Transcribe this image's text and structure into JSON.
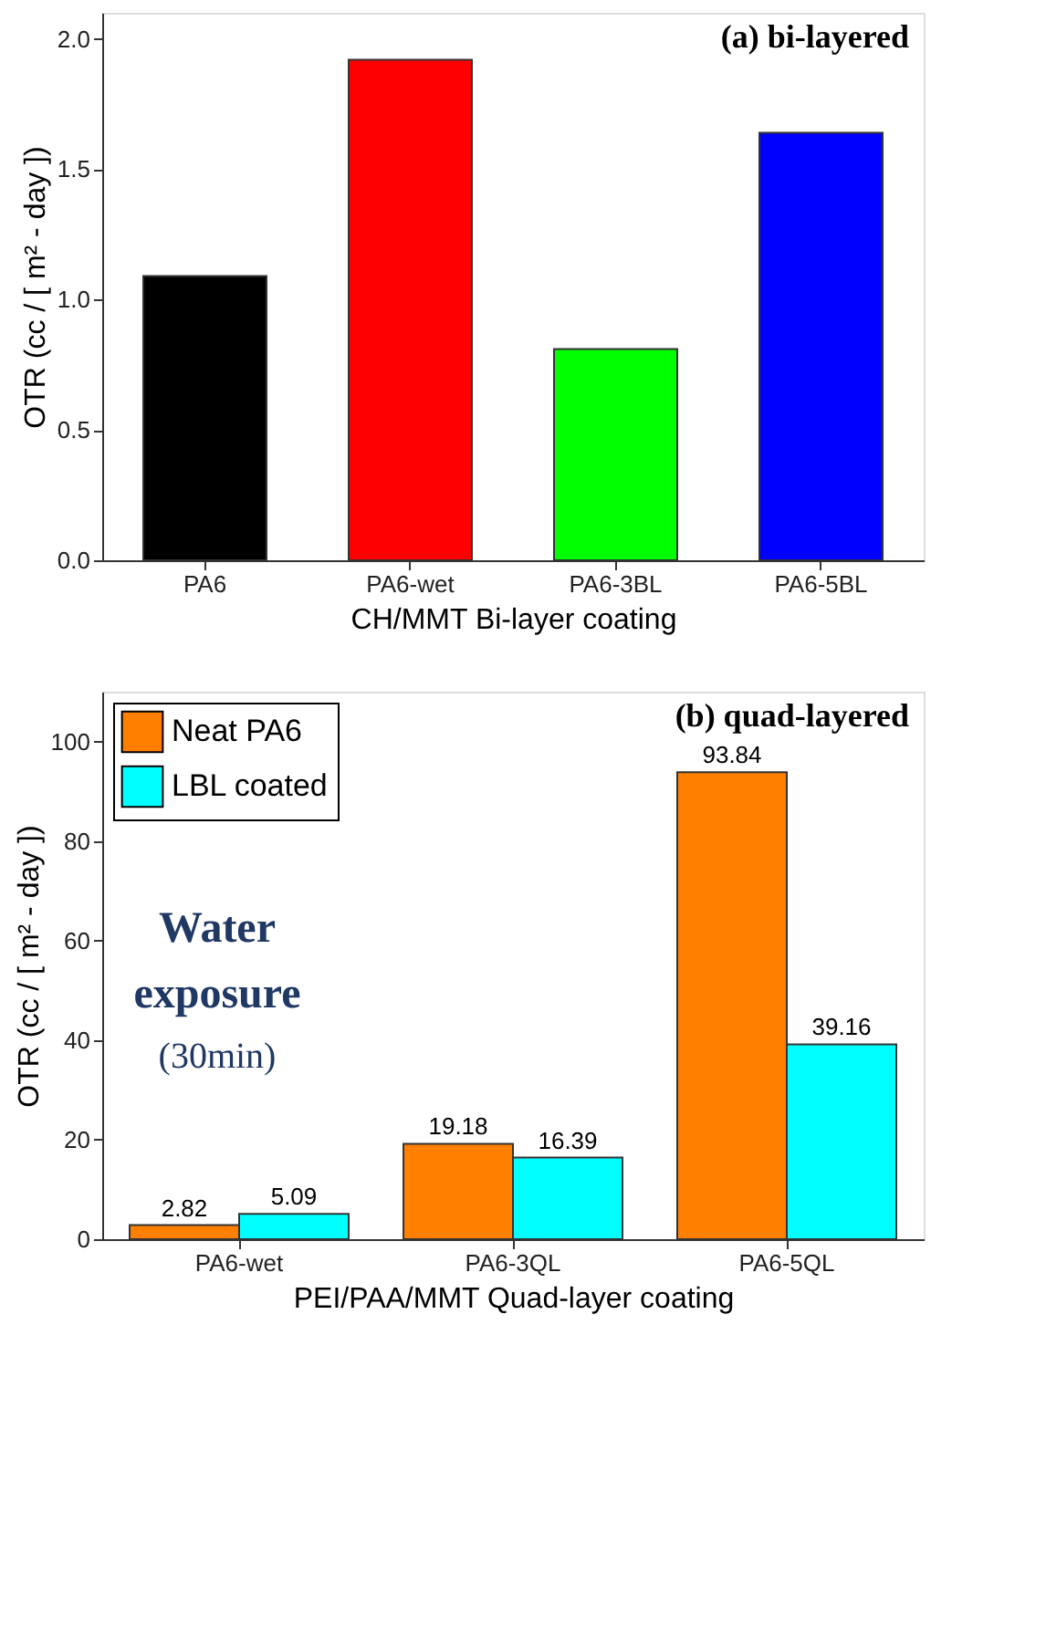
{
  "chart_data": [
    {
      "type": "bar",
      "ylabel": "OTR (cc / [ m² - day ])",
      "xlabel": "CH/MMT Bi-layer coating",
      "categories": [
        "PA6",
        "PA6-wet",
        "PA6-3BL",
        "PA6-5BL"
      ],
      "values": [
        1.09,
        1.92,
        0.81,
        1.64
      ],
      "colors": [
        "#000000",
        "#ff0000",
        "#00ff00",
        "#0000ff"
      ],
      "ylim": [
        0,
        2.1
      ],
      "yticks": [
        {
          "value": 0,
          "label": "0.0"
        },
        {
          "value": 0.5,
          "label": "0.5"
        },
        {
          "value": 1,
          "label": "1.0"
        },
        {
          "value": 1.5,
          "label": "1.5"
        },
        {
          "value": 2,
          "label": "2.0"
        }
      ],
      "grid": false,
      "annotations": [
        "(a) bi-layered"
      ]
    },
    {
      "type": "bar",
      "ylabel": "OTR (cc / [ m² - day ])",
      "xlabel": "PEI/PAA/MMT Quad-layer coating",
      "categories": [
        "PA6-wet",
        "PA6-3QL",
        "PA6-5QL"
      ],
      "series": [
        {
          "name": "Neat PA6",
          "color": "#ff7f00",
          "values": [
            2.82,
            19.18,
            93.84
          ]
        },
        {
          "name": "LBL coated",
          "color": "#00ffff",
          "values": [
            5.09,
            16.39,
            39.16
          ]
        }
      ],
      "ylim": [
        0,
        110
      ],
      "yticks": [
        0,
        20,
        40,
        60,
        80,
        100
      ],
      "grid": false,
      "legend": "top left",
      "data_labels": true,
      "annotations": [
        "(b) quad-layered",
        "Water",
        "exposure",
        "(30min)"
      ]
    }
  ]
}
